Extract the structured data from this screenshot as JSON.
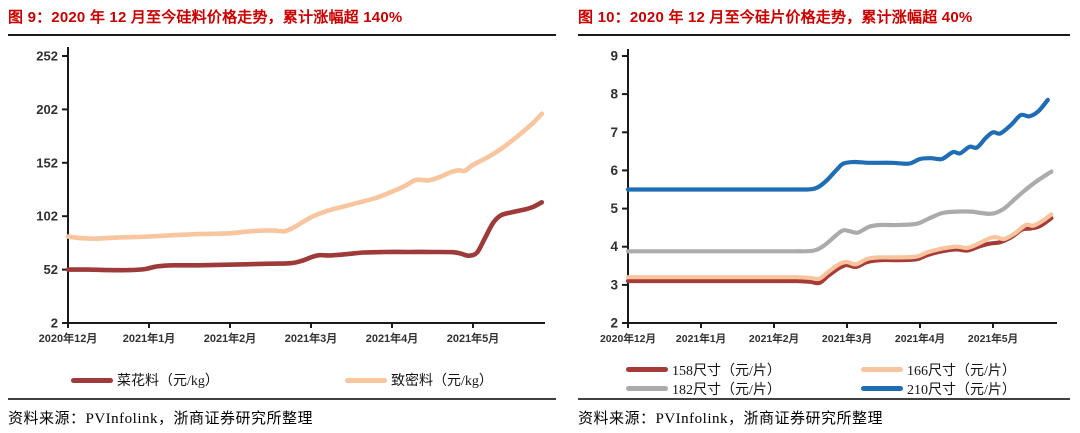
{
  "page": {
    "background": "#ffffff"
  },
  "source_rule_color": "#404040",
  "title_color": "#cc0000",
  "figures": [
    {
      "title": "图 9：2020 年 12 月至今硅料价格走势，累计涨幅超 140%",
      "source": "资料来源：PVInfolink，浙商证券研究所整理",
      "chart_data": {
        "type": "line",
        "title": "2020年12月至今硅料价格走势",
        "xlabel": "",
        "ylabel": "元/kg",
        "ylim": [
          2,
          252
        ],
        "y_ticks": [
          2,
          52,
          102,
          152,
          202,
          252
        ],
        "x_tick_labels": [
          "2020年12月",
          "2021年1月",
          "2021年2月",
          "2021年3月",
          "2021年4月",
          "2021年5月"
        ],
        "x_unit": "months since 2020-12",
        "xlim_months": [
          0,
          5.88
        ],
        "grid": false,
        "legend_position": "bottom",
        "series": [
          {
            "name": "菜花料（元/kg）",
            "color": "#9e3a3a",
            "points": [
              [
                0,
                52
              ],
              [
                0.25,
                52
              ],
              [
                0.5,
                51.5
              ],
              [
                0.75,
                51.5
              ],
              [
                0.95,
                52.5
              ],
              [
                1.1,
                55
              ],
              [
                1.3,
                56
              ],
              [
                1.6,
                56
              ],
              [
                1.9,
                56.5
              ],
              [
                2.2,
                57
              ],
              [
                2.5,
                57.5
              ],
              [
                2.75,
                58
              ],
              [
                2.9,
                60.5
              ],
              [
                3.0,
                63.5
              ],
              [
                3.1,
                65.5
              ],
              [
                3.25,
                65.3
              ],
              [
                3.45,
                66.5
              ],
              [
                3.65,
                68
              ],
              [
                3.9,
                68.5
              ],
              [
                4.2,
                68.5
              ],
              [
                4.5,
                68.5
              ],
              [
                4.75,
                68.3
              ],
              [
                4.85,
                67
              ],
              [
                4.95,
                65
              ],
              [
                5.05,
                68
              ],
              [
                5.15,
                82
              ],
              [
                5.25,
                96
              ],
              [
                5.35,
                103
              ],
              [
                5.5,
                106
              ],
              [
                5.65,
                108.5
              ],
              [
                5.75,
                111
              ],
              [
                5.85,
                115
              ]
            ]
          },
          {
            "name": "致密料（元/kg）",
            "color": "#f8c59e",
            "points": [
              [
                0,
                83
              ],
              [
                0.15,
                81.5
              ],
              [
                0.35,
                81
              ],
              [
                0.6,
                82
              ],
              [
                0.85,
                82.5
              ],
              [
                1.0,
                83
              ],
              [
                1.25,
                84
              ],
              [
                1.5,
                85
              ],
              [
                1.75,
                85.5
              ],
              [
                2.0,
                86
              ],
              [
                2.2,
                87.5
              ],
              [
                2.4,
                88.5
              ],
              [
                2.55,
                88.5
              ],
              [
                2.68,
                88
              ],
              [
                2.8,
                92
              ],
              [
                3.0,
                101
              ],
              [
                3.2,
                107
              ],
              [
                3.4,
                111
              ],
              [
                3.6,
                115
              ],
              [
                3.8,
                119
              ],
              [
                4.0,
                125
              ],
              [
                4.15,
                130
              ],
              [
                4.3,
                136
              ],
              [
                4.45,
                135.5
              ],
              [
                4.6,
                139
              ],
              [
                4.72,
                143
              ],
              [
                4.82,
                145
              ],
              [
                4.9,
                144.5
              ],
              [
                5.0,
                150
              ],
              [
                5.2,
                158
              ],
              [
                5.4,
                168
              ],
              [
                5.6,
                180
              ],
              [
                5.75,
                190
              ],
              [
                5.85,
                198
              ]
            ]
          }
        ]
      }
    },
    {
      "title": "图 10：2020 年 12 月至今硅片价格走势，累计涨幅超 40%",
      "source": "资料来源：PVInfolink，浙商证券研究所整理",
      "chart_data": {
        "type": "line",
        "title": "2020年12月至今硅片价格走势",
        "xlabel": "",
        "ylabel": "元/片",
        "ylim": [
          2,
          9
        ],
        "y_ticks": [
          2,
          3,
          4,
          5,
          6,
          7,
          8,
          9
        ],
        "x_tick_labels": [
          "2020年12月",
          "2021年1月",
          "2021年2月",
          "2021年3月",
          "2021年4月",
          "2021年5月"
        ],
        "x_unit": "months since 2020-12",
        "xlim_months": [
          0,
          5.86
        ],
        "grid": false,
        "legend_position": "bottom",
        "series": [
          {
            "name": "158尺寸（元/片）",
            "color": "#a63a37",
            "points": [
              [
                0,
                3.1
              ],
              [
                0.6,
                3.1
              ],
              [
                1.2,
                3.1
              ],
              [
                1.8,
                3.1
              ],
              [
                2.3,
                3.1
              ],
              [
                2.5,
                3.08
              ],
              [
                2.62,
                3.05
              ],
              [
                2.75,
                3.25
              ],
              [
                2.9,
                3.45
              ],
              [
                3.0,
                3.52
              ],
              [
                3.12,
                3.47
              ],
              [
                3.28,
                3.6
              ],
              [
                3.45,
                3.65
              ],
              [
                3.7,
                3.65
              ],
              [
                3.95,
                3.67
              ],
              [
                4.1,
                3.78
              ],
              [
                4.3,
                3.88
              ],
              [
                4.5,
                3.93
              ],
              [
                4.65,
                3.9
              ],
              [
                4.8,
                4.0
              ],
              [
                4.95,
                4.08
              ],
              [
                5.1,
                4.12
              ],
              [
                5.25,
                4.25
              ],
              [
                5.4,
                4.45
              ],
              [
                5.52,
                4.48
              ],
              [
                5.65,
                4.55
              ],
              [
                5.8,
                4.75
              ]
            ]
          },
          {
            "name": "166尺寸（元/片）",
            "color": "#f8c49e",
            "points": [
              [
                0,
                3.2
              ],
              [
                0.6,
                3.2
              ],
              [
                1.2,
                3.2
              ],
              [
                1.8,
                3.2
              ],
              [
                2.3,
                3.2
              ],
              [
                2.5,
                3.18
              ],
              [
                2.62,
                3.16
              ],
              [
                2.75,
                3.35
              ],
              [
                2.9,
                3.55
              ],
              [
                3.0,
                3.6
              ],
              [
                3.12,
                3.54
              ],
              [
                3.28,
                3.68
              ],
              [
                3.45,
                3.72
              ],
              [
                3.7,
                3.72
              ],
              [
                3.95,
                3.74
              ],
              [
                4.1,
                3.85
              ],
              [
                4.3,
                3.95
              ],
              [
                4.5,
                4.0
              ],
              [
                4.65,
                3.97
              ],
              [
                4.8,
                4.08
              ],
              [
                4.95,
                4.22
              ],
              [
                5.05,
                4.25
              ],
              [
                5.15,
                4.2
              ],
              [
                5.3,
                4.35
              ],
              [
                5.45,
                4.57
              ],
              [
                5.55,
                4.55
              ],
              [
                5.68,
                4.68
              ],
              [
                5.8,
                4.85
              ]
            ]
          },
          {
            "name": "182尺寸（元/片）",
            "color": "#ababab",
            "points": [
              [
                0,
                3.88
              ],
              [
                0.6,
                3.88
              ],
              [
                1.2,
                3.88
              ],
              [
                1.8,
                3.88
              ],
              [
                2.3,
                3.88
              ],
              [
                2.55,
                3.9
              ],
              [
                2.7,
                4.05
              ],
              [
                2.85,
                4.3
              ],
              [
                2.95,
                4.43
              ],
              [
                3.05,
                4.4
              ],
              [
                3.15,
                4.37
              ],
              [
                3.3,
                4.52
              ],
              [
                3.45,
                4.57
              ],
              [
                3.7,
                4.57
              ],
              [
                3.95,
                4.6
              ],
              [
                4.1,
                4.72
              ],
              [
                4.3,
                4.88
              ],
              [
                4.5,
                4.92
              ],
              [
                4.7,
                4.92
              ],
              [
                4.85,
                4.88
              ],
              [
                5.0,
                4.87
              ],
              [
                5.15,
                5.0
              ],
              [
                5.3,
                5.25
              ],
              [
                5.45,
                5.5
              ],
              [
                5.6,
                5.72
              ],
              [
                5.8,
                5.97
              ]
            ]
          },
          {
            "name": "210尺寸（元/片）",
            "color": "#1f6eb5",
            "points": [
              [
                0,
                5.5
              ],
              [
                0.6,
                5.5
              ],
              [
                1.2,
                5.5
              ],
              [
                1.8,
                5.5
              ],
              [
                2.3,
                5.5
              ],
              [
                2.55,
                5.52
              ],
              [
                2.7,
                5.7
              ],
              [
                2.85,
                6.0
              ],
              [
                2.95,
                6.18
              ],
              [
                3.1,
                6.22
              ],
              [
                3.3,
                6.2
              ],
              [
                3.6,
                6.2
              ],
              [
                3.85,
                6.18
              ],
              [
                4.0,
                6.3
              ],
              [
                4.15,
                6.32
              ],
              [
                4.3,
                6.3
              ],
              [
                4.45,
                6.48
              ],
              [
                4.55,
                6.45
              ],
              [
                4.68,
                6.62
              ],
              [
                4.78,
                6.6
              ],
              [
                4.9,
                6.85
              ],
              [
                5.0,
                7.0
              ],
              [
                5.1,
                6.97
              ],
              [
                5.25,
                7.2
              ],
              [
                5.38,
                7.45
              ],
              [
                5.5,
                7.42
              ],
              [
                5.62,
                7.55
              ],
              [
                5.75,
                7.85
              ]
            ]
          }
        ]
      }
    }
  ]
}
